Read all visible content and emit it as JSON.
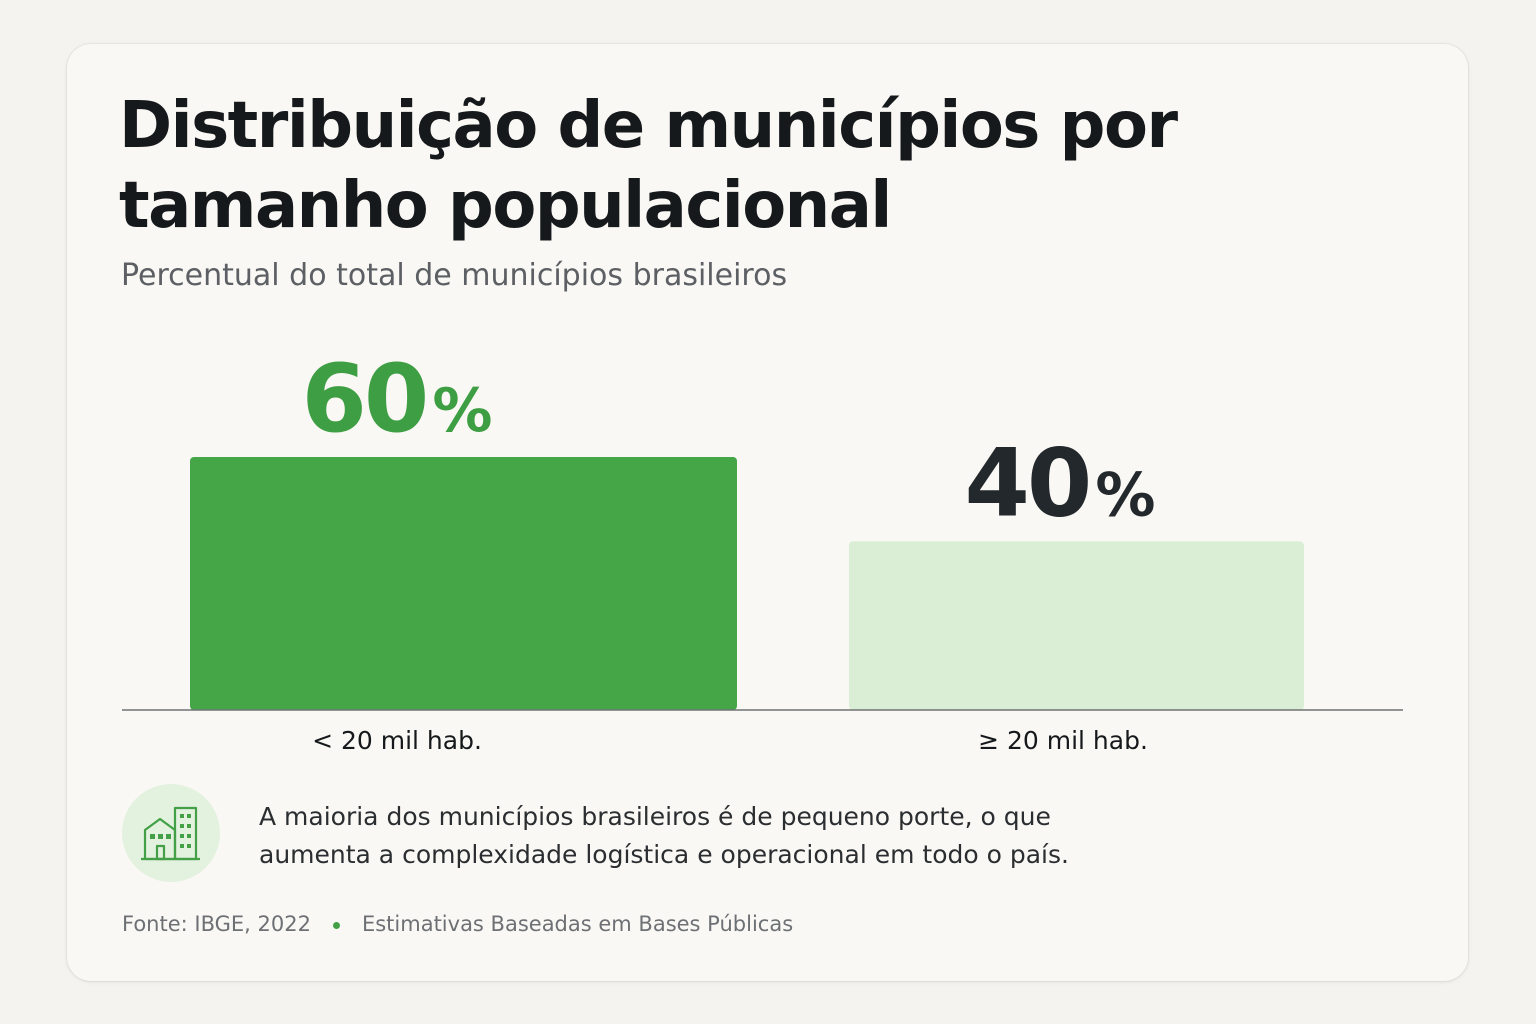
{
  "title": "Distribuição de municípios por tamanho populacional",
  "subtitle": "Percentual do total de municípios brasileiros",
  "chart_data": {
    "type": "bar",
    "categories": [
      "< 20 mil hab.",
      "≥ 20 mil hab."
    ],
    "values": [
      60,
      40
    ],
    "value_labels": [
      "60",
      "40"
    ],
    "value_suffix": "%",
    "ylim": [
      0,
      100
    ],
    "grid": false,
    "legend": "none",
    "bar_colors": [
      "#45a648",
      "#d9eed4"
    ],
    "label_colors": [
      "#3e9e43",
      "#23282c"
    ]
  },
  "note": {
    "icon": "buildings-icon",
    "icon_color": "#43a047",
    "text": "A maioria dos municípios brasileiros é de pequeno porte, o que aumenta a complexidade logística e operacional em todo o país."
  },
  "footer": {
    "source": "Fonte: IBGE, 2022",
    "remark": "Estimativas Baseadas em Bases Públicas"
  },
  "colors": {
    "accent": "#43a047",
    "background": "#faf8f4",
    "text": "#16191c"
  }
}
